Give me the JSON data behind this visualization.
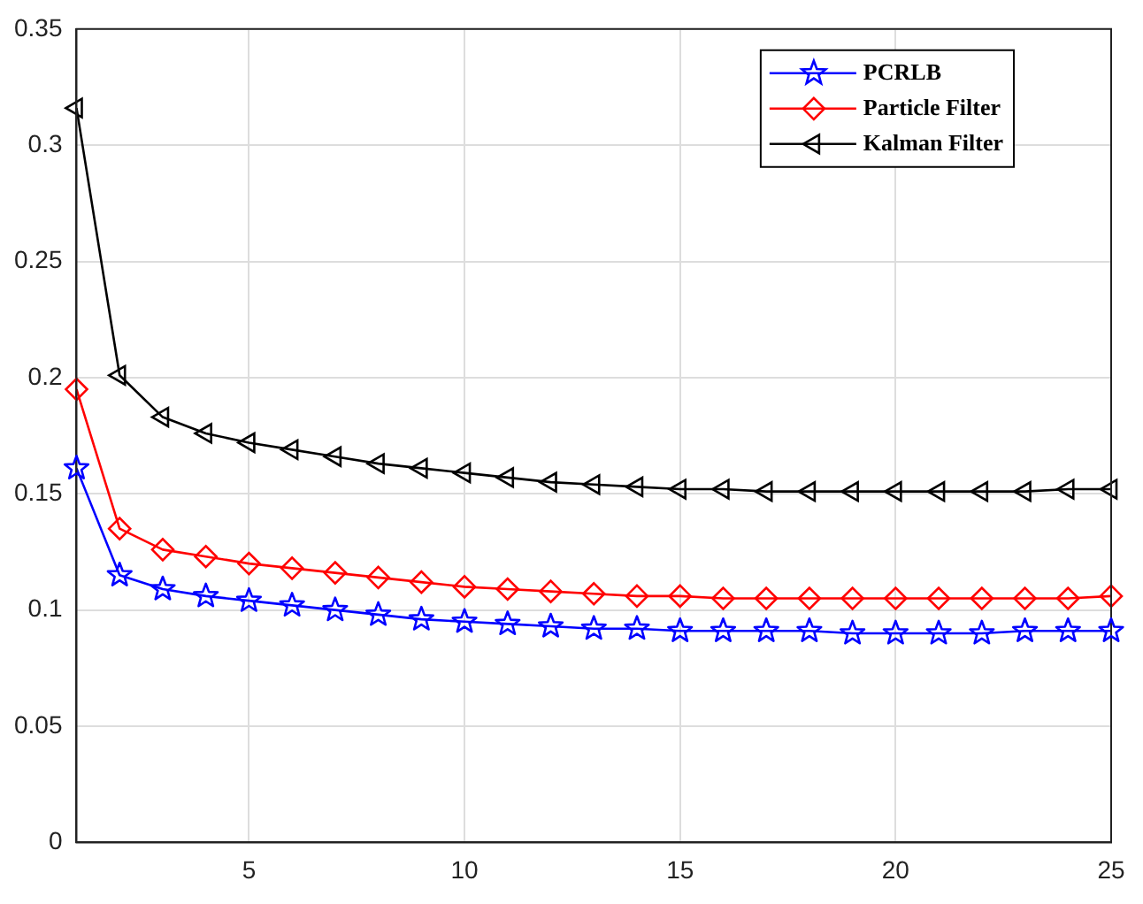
{
  "chart_data": {
    "type": "line",
    "x": [
      1,
      2,
      3,
      4,
      5,
      6,
      7,
      8,
      9,
      10,
      11,
      12,
      13,
      14,
      15,
      16,
      17,
      18,
      19,
      20,
      21,
      22,
      23,
      24,
      25
    ],
    "series": [
      {
        "name": "PCRLB",
        "color": "#0000ff",
        "marker": "star",
        "values": [
          0.161,
          0.115,
          0.109,
          0.106,
          0.104,
          0.102,
          0.1,
          0.098,
          0.096,
          0.095,
          0.094,
          0.093,
          0.092,
          0.092,
          0.091,
          0.091,
          0.091,
          0.091,
          0.09,
          0.09,
          0.09,
          0.09,
          0.091,
          0.091,
          0.091
        ]
      },
      {
        "name": "Particle Filter",
        "color": "#ff0000",
        "marker": "diamond",
        "values": [
          0.195,
          0.135,
          0.126,
          0.123,
          0.12,
          0.118,
          0.116,
          0.114,
          0.112,
          0.11,
          0.109,
          0.108,
          0.107,
          0.106,
          0.106,
          0.105,
          0.105,
          0.105,
          0.105,
          0.105,
          0.105,
          0.105,
          0.105,
          0.105,
          0.106
        ]
      },
      {
        "name": "Kalman Filter",
        "color": "#000000",
        "marker": "triangle",
        "values": [
          0.316,
          0.201,
          0.183,
          0.176,
          0.172,
          0.169,
          0.166,
          0.163,
          0.161,
          0.159,
          0.157,
          0.155,
          0.154,
          0.153,
          0.152,
          0.152,
          0.151,
          0.151,
          0.151,
          0.151,
          0.151,
          0.151,
          0.151,
          0.152,
          0.152
        ]
      }
    ],
    "xlim": [
      1,
      25
    ],
    "xticks": [
      5,
      10,
      15,
      20,
      25
    ],
    "ylim": [
      0,
      0.35
    ],
    "yticks": [
      0,
      0.05,
      0.1,
      0.15,
      0.2,
      0.25,
      0.3,
      0.35
    ],
    "grid": true,
    "legend": "top right",
    "line_style": "solid"
  }
}
